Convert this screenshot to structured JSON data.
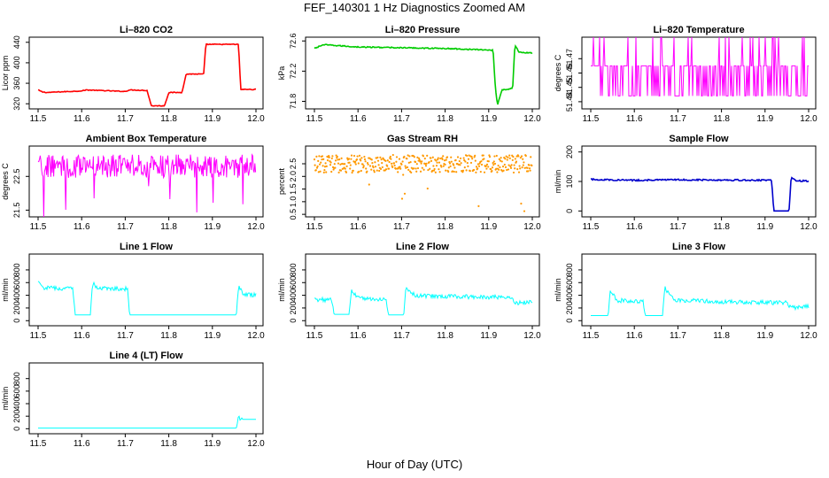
{
  "title": "FEF_140301  1 Hz Diagnostics Zoomed AM",
  "x_axis_title": "Hour of Day (UTC)",
  "chart_data": [
    {
      "type": "line",
      "title": "Li–820 CO2",
      "ylabel": "Licor ppm",
      "color": "#ff0000",
      "xlim": [
        11.5,
        12.0
      ],
      "ylim": [
        310,
        450
      ],
      "yticks": [
        320,
        360,
        400,
        440
      ],
      "xticks": [
        11.5,
        11.6,
        11.7,
        11.8,
        11.9,
        12.0
      ],
      "grid": false,
      "series": [
        {
          "x": [
            11.5,
            11.51,
            11.52,
            11.6,
            11.61,
            11.7,
            11.71,
            11.75,
            11.76,
            11.79,
            11.8,
            11.83,
            11.84,
            11.88,
            11.885,
            11.96,
            11.965,
            12.0
          ],
          "values": [
            347,
            343,
            342,
            345,
            347,
            344,
            347,
            346,
            316,
            316,
            342,
            342,
            378,
            378,
            436,
            436,
            348,
            348
          ]
        }
      ]
    },
    {
      "type": "line",
      "title": "Li–820 Pressure",
      "ylabel": "kPa",
      "color": "#00cc00",
      "xlim": [
        11.5,
        12.0
      ],
      "ylim": [
        71.7,
        72.65
      ],
      "yticks": [
        71.8,
        72.2,
        72.6
      ],
      "xticks": [
        11.5,
        11.6,
        11.7,
        11.8,
        11.9,
        12.0
      ],
      "grid": false,
      "series": [
        {
          "x": [
            11.5,
            11.52,
            11.6,
            11.7,
            11.8,
            11.9,
            11.91,
            11.915,
            11.92,
            11.93,
            11.955,
            11.96,
            11.97,
            12.0
          ],
          "values": [
            72.5,
            72.55,
            72.52,
            72.51,
            72.5,
            72.48,
            72.48,
            72.0,
            71.75,
            71.95,
            71.97,
            72.55,
            72.45,
            72.44
          ]
        }
      ]
    },
    {
      "type": "line",
      "title": "Li–820 Temperature",
      "ylabel": "degrees C",
      "color": "#ff00ff",
      "xlim": [
        11.5,
        12.0
      ],
      "ylim": [
        51.435,
        51.485
      ],
      "yticks": [
        51.44,
        51.45,
        51.46,
        51.47
      ],
      "xticks": [
        11.5,
        11.6,
        11.7,
        11.8,
        11.9,
        12.0
      ],
      "grid": false,
      "series": [
        {
          "x": [
            11.5,
            12.0
          ],
          "values": [
            51.46,
            51.46
          ]
        }
      ]
    },
    {
      "type": "line",
      "title": "Ambient Box Temperature",
      "ylabel": "degrees C",
      "color": "#ff00ff",
      "xlim": [
        11.5,
        12.0
      ],
      "ylim": [
        21.3,
        23.4
      ],
      "yticks": [
        21.5,
        22.5
      ],
      "xticks": [
        11.5,
        11.6,
        11.7,
        11.8,
        11.9,
        12.0
      ],
      "grid": false,
      "series": [
        {
          "x": [
            11.5,
            12.0
          ],
          "values": [
            22.8,
            22.8
          ]
        }
      ]
    },
    {
      "type": "scatter",
      "title": "Gas Stream RH",
      "ylabel": "percent",
      "color": "#ff9900",
      "xlim": [
        11.5,
        12.0
      ],
      "ylim": [
        0.4,
        3.2
      ],
      "yticks": [
        0.5,
        1.0,
        1.5,
        2.0,
        2.5
      ],
      "xticks": [
        11.5,
        11.6,
        11.7,
        11.8,
        11.9,
        12.0
      ],
      "grid": false,
      "series": [
        {
          "x": [
            11.5,
            12.0
          ],
          "values": [
            2.5,
            2.5
          ]
        }
      ]
    },
    {
      "type": "line",
      "title": "Sample Flow",
      "ylabel": "ml/min",
      "color": "#0000cc",
      "xlim": [
        11.5,
        12.0
      ],
      "ylim": [
        -20,
        220
      ],
      "yticks": [
        0,
        100,
        200
      ],
      "xticks": [
        11.5,
        11.6,
        11.7,
        11.8,
        11.9,
        12.0
      ],
      "grid": false,
      "series": [
        {
          "x": [
            11.5,
            11.6,
            11.7,
            11.8,
            11.9,
            11.915,
            11.92,
            11.955,
            11.96,
            11.97,
            12.0
          ],
          "values": [
            107,
            104,
            106,
            105,
            104,
            104,
            0,
            0,
            115,
            103,
            101
          ]
        }
      ]
    },
    {
      "type": "line",
      "title": "Line 1 Flow",
      "ylabel": "ml/min",
      "color": "#00ffff",
      "xlim": [
        11.5,
        12.0
      ],
      "ylim": [
        -80,
        1050
      ],
      "yticks": [
        0,
        200,
        400,
        600,
        800
      ],
      "xticks": [
        11.5,
        11.6,
        11.7,
        11.8,
        11.9,
        12.0
      ],
      "grid": false,
      "series": [
        {
          "x": [
            11.5,
            11.51,
            11.58,
            11.585,
            11.62,
            11.625,
            11.635,
            11.705,
            11.71,
            11.955,
            11.96,
            11.97,
            12.0
          ],
          "values": [
            600,
            520,
            500,
            90,
            90,
            600,
            520,
            500,
            90,
            90,
            560,
            420,
            400
          ]
        }
      ]
    },
    {
      "type": "line",
      "title": "Line 2 Flow",
      "ylabel": "ml/min",
      "color": "#00ffff",
      "xlim": [
        11.5,
        12.0
      ],
      "ylim": [
        -80,
        1050
      ],
      "yticks": [
        0,
        200,
        400,
        600,
        800
      ],
      "xticks": [
        11.5,
        11.6,
        11.7,
        11.8,
        11.9,
        12.0
      ],
      "grid": false,
      "series": [
        {
          "x": [
            11.5,
            11.54,
            11.545,
            11.58,
            11.585,
            11.6,
            11.665,
            11.67,
            11.705,
            11.71,
            11.73,
            11.8,
            11.95,
            11.96,
            12.0
          ],
          "values": [
            330,
            330,
            100,
            100,
            480,
            360,
            330,
            90,
            90,
            520,
            400,
            380,
            370,
            280,
            300
          ]
        }
      ]
    },
    {
      "type": "line",
      "title": "Line 3 Flow",
      "ylabel": "ml/min",
      "color": "#00ffff",
      "xlim": [
        11.5,
        12.0
      ],
      "ylim": [
        -80,
        1050
      ],
      "yticks": [
        0,
        200,
        400,
        600,
        800
      ],
      "xticks": [
        11.5,
        11.6,
        11.7,
        11.8,
        11.9,
        12.0
      ],
      "grid": false,
      "series": [
        {
          "x": [
            11.5,
            11.54,
            11.545,
            11.56,
            11.62,
            11.625,
            11.665,
            11.67,
            11.69,
            11.8,
            11.95,
            11.96,
            12.0
          ],
          "values": [
            80,
            80,
            470,
            320,
            300,
            80,
            80,
            520,
            330,
            300,
            280,
            200,
            230
          ]
        }
      ]
    },
    {
      "type": "line",
      "title": "Line 4 (LT) Flow",
      "ylabel": "ml/min",
      "color": "#00ffff",
      "xlim": [
        11.5,
        12.0
      ],
      "ylim": [
        -80,
        1050
      ],
      "yticks": [
        0,
        200,
        400,
        600,
        800
      ],
      "xticks": [
        11.5,
        11.6,
        11.7,
        11.8,
        11.9,
        12.0
      ],
      "grid": false,
      "series": [
        {
          "x": [
            11.5,
            11.955,
            11.96,
            11.97,
            12.0
          ],
          "values": [
            10,
            10,
            180,
            150,
            150
          ]
        }
      ]
    }
  ]
}
